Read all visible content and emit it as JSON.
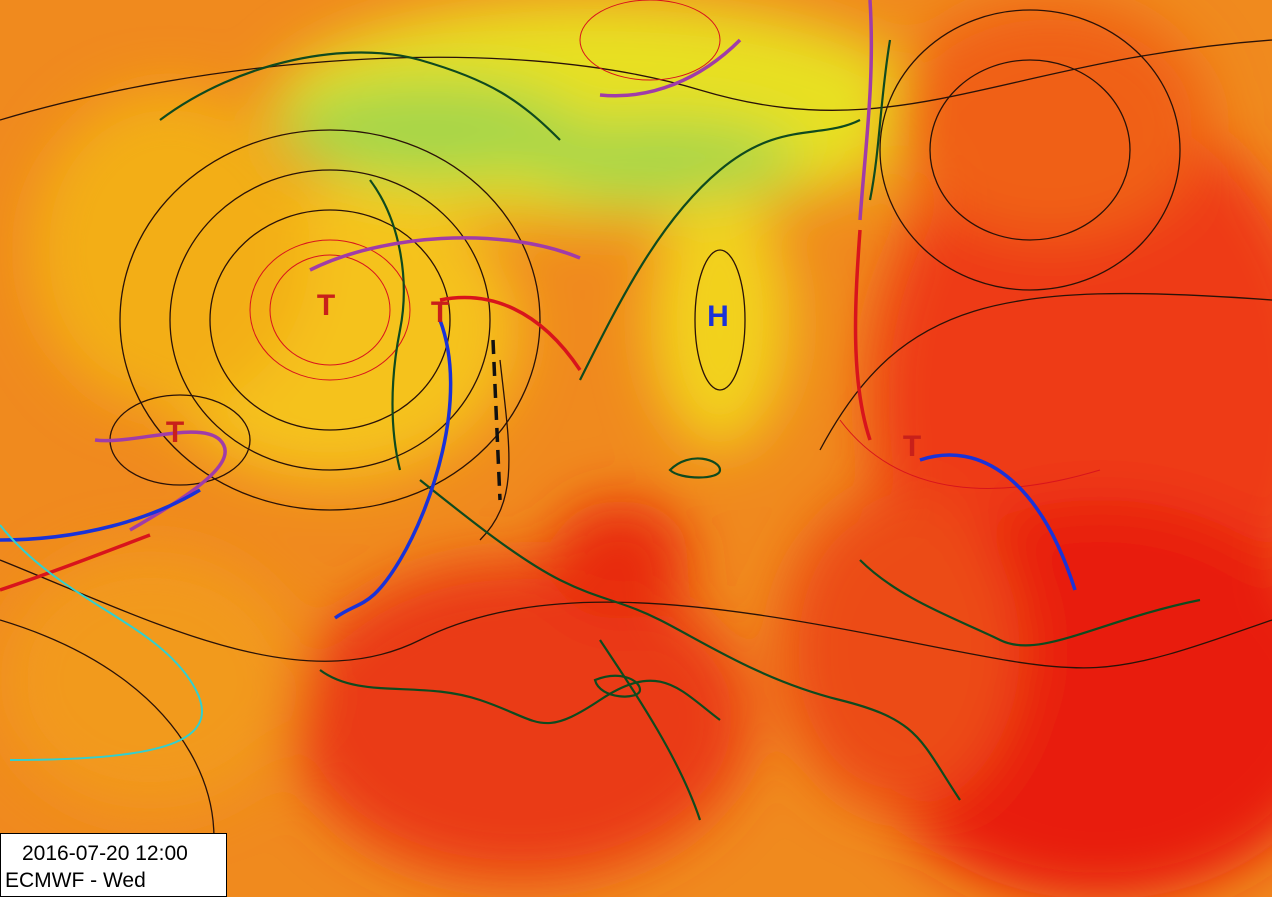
{
  "map": {
    "timestamp": "2016-07-20 12:00",
    "model_day": "ECMWF - Wed",
    "pressure_centers": [
      {
        "label": "T"
      },
      {
        "label": "T"
      },
      {
        "label": "T"
      },
      {
        "label": "H"
      },
      {
        "label": "T"
      }
    ]
  }
}
